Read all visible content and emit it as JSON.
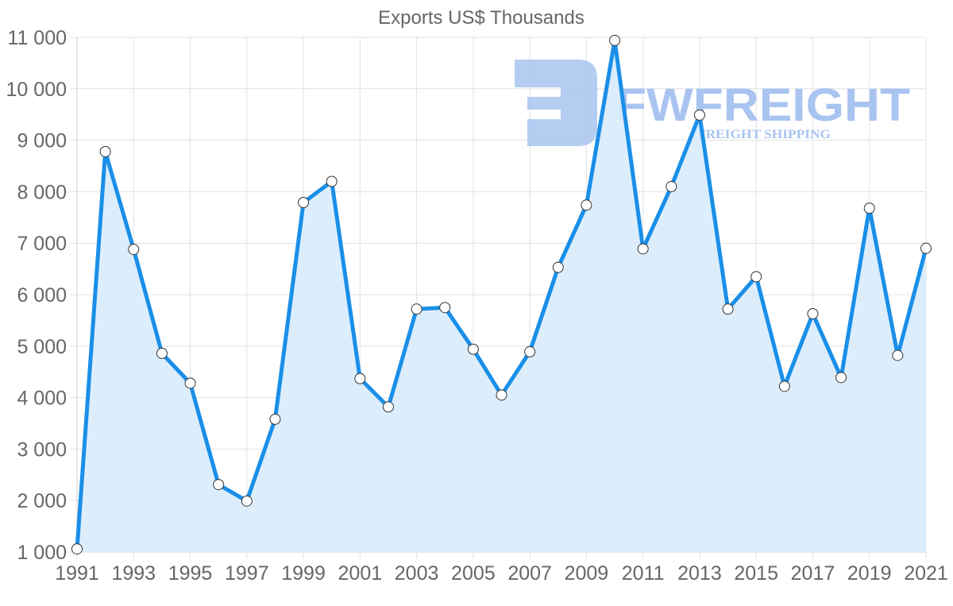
{
  "chart_data": {
    "type": "line",
    "title": "Exports US$ Thousands",
    "xlabel": "",
    "ylabel": "",
    "x": [
      1991,
      1992,
      1993,
      1994,
      1995,
      1996,
      1997,
      1998,
      1999,
      2000,
      2001,
      2002,
      2003,
      2004,
      2005,
      2006,
      2007,
      2008,
      2009,
      2010,
      2011,
      2012,
      2013,
      2014,
      2015,
      2016,
      2017,
      2018,
      2019,
      2020,
      2021
    ],
    "series": [
      {
        "name": "Exports US$ Thousands",
        "values": [
          1060,
          8780,
          6880,
          4860,
          4280,
          2310,
          1990,
          3580,
          7790,
          8200,
          4370,
          3820,
          5720,
          5750,
          4940,
          4050,
          4890,
          6530,
          7740,
          10940,
          6890,
          8100,
          9490,
          5720,
          6350,
          4220,
          5630,
          4390,
          7680,
          4820,
          6900
        ]
      }
    ],
    "ylim": [
      1000,
      11000
    ],
    "xlim": [
      1991,
      2021
    ],
    "y_ticks": [
      1000,
      2000,
      3000,
      4000,
      5000,
      6000,
      7000,
      8000,
      9000,
      10000,
      11000
    ],
    "y_tick_labels": [
      "1 000",
      "2 000",
      "3 000",
      "4 000",
      "5 000",
      "6 000",
      "7 000",
      "8 000",
      "9 000",
      "10 000",
      "11 000"
    ],
    "x_ticks": [
      1991,
      1993,
      1995,
      1997,
      1999,
      2001,
      2003,
      2005,
      2007,
      2009,
      2011,
      2013,
      2015,
      2017,
      2019,
      2021
    ],
    "x_tick_labels": [
      "1991",
      "1993",
      "1995",
      "1997",
      "1999",
      "2001",
      "2003",
      "2005",
      "2007",
      "2009",
      "2011",
      "2013",
      "2015",
      "2017",
      "2019",
      "2021"
    ],
    "grid": true,
    "area_fill": true,
    "legend": null
  },
  "colors": {
    "line": "#1a8fe8",
    "fill": "#d8ebfc",
    "marker_fill": "#ffffff",
    "marker_stroke": "#333333",
    "text": "#666666",
    "grid": "#e1e1e1"
  },
  "watermark": {
    "brand": "FWFREIGHT",
    "tagline": "FREIGHT SHIPPING"
  }
}
